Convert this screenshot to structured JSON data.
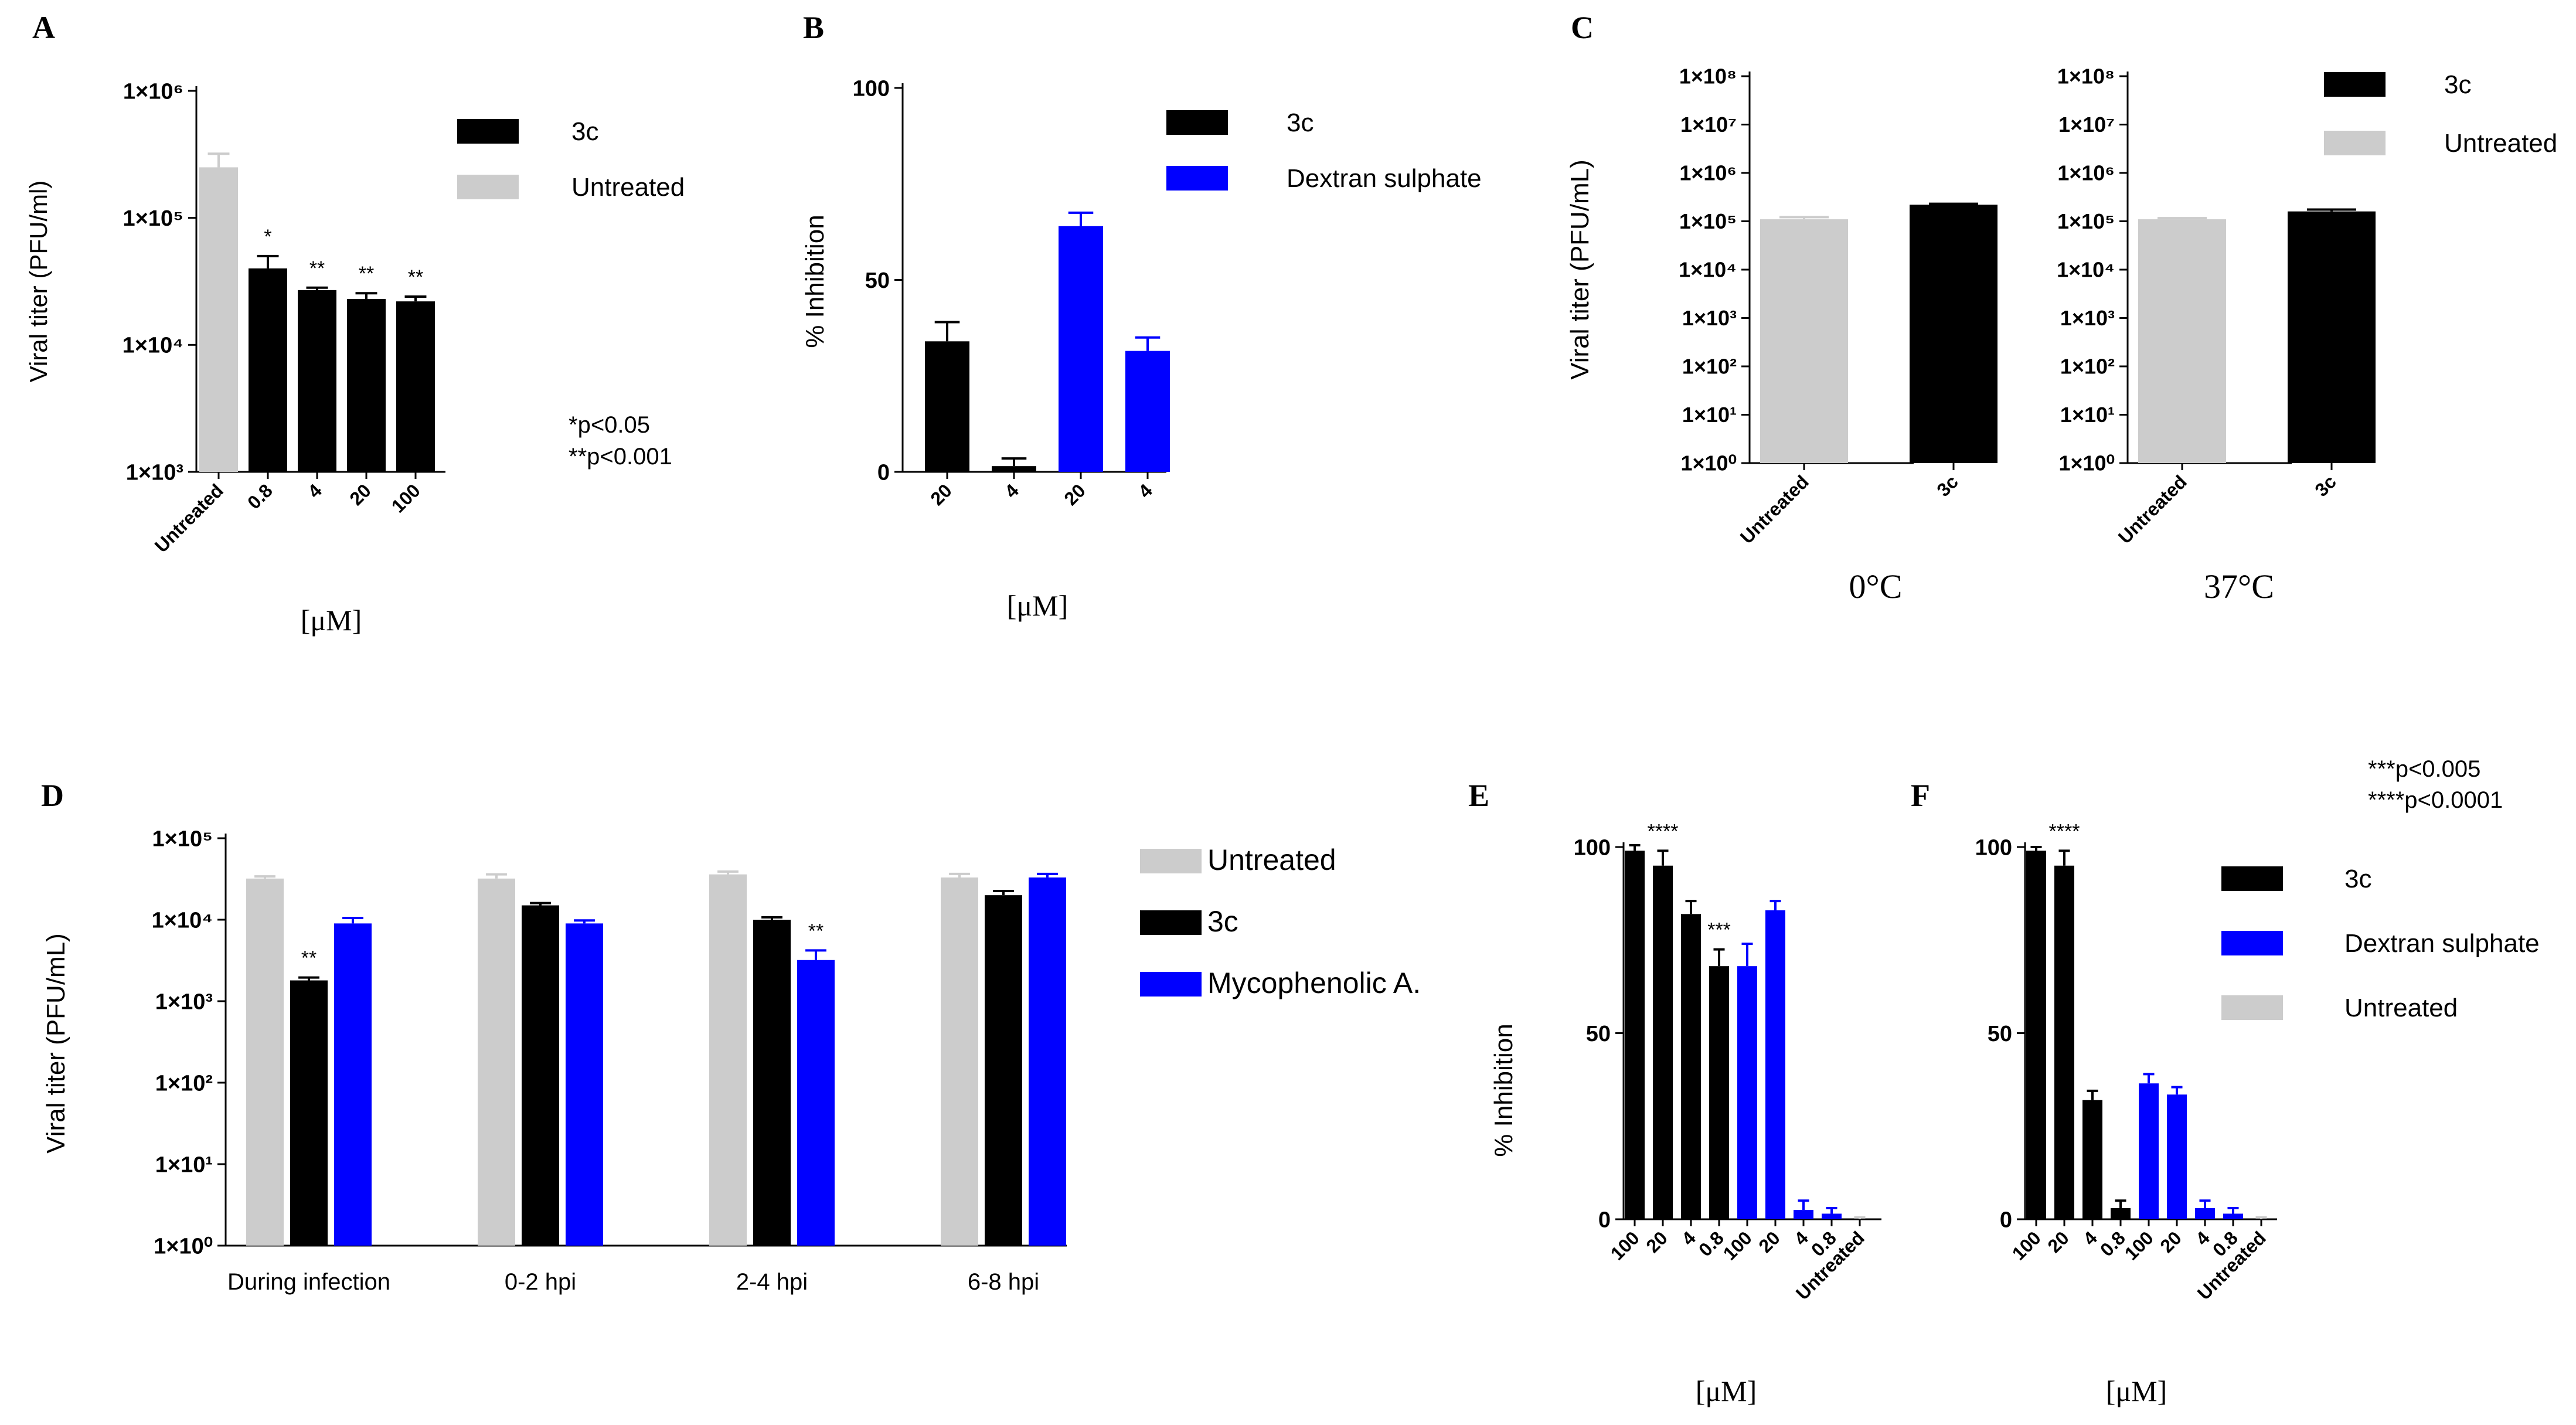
{
  "colors": {
    "black": "#000000",
    "gray": "#cccccc",
    "blue": "#0000ff"
  },
  "footnotes": {
    "a": [
      "*p<0.05",
      "**p<0.001"
    ],
    "ef": [
      "***p<0.005",
      "****p<0.0001"
    ]
  },
  "chart_data": [
    {
      "panel": "A",
      "type": "bar",
      "scale": "log",
      "ylabel": "Viral titer (PFU/ml)",
      "xlabel": "[μM]",
      "ylim": [
        1000,
        1000000
      ],
      "yticks": [
        {
          "value": 1000,
          "label": "1×10³"
        },
        {
          "value": 10000,
          "label": "1×10⁴"
        },
        {
          "value": 100000,
          "label": "1×10⁵"
        },
        {
          "value": 1000000,
          "label": "1×10⁶"
        }
      ],
      "categories": [
        "Untreated",
        "0.8",
        "4",
        "20",
        "100"
      ],
      "values": [
        250000,
        40000,
        27000,
        23000,
        22000
      ],
      "errors": [
        70000,
        10000,
        1200,
        2500,
        2000
      ],
      "colors": [
        "gray",
        "black",
        "black",
        "black",
        "black"
      ],
      "annotations": [
        "",
        "*",
        "**",
        "**",
        "**"
      ],
      "legend": [
        {
          "label": "3c",
          "color": "black"
        },
        {
          "label": "Untreated",
          "color": "gray"
        }
      ]
    },
    {
      "panel": "B",
      "type": "bar",
      "scale": "linear",
      "ylabel": "% Inhibition",
      "xlabel": "[μM]",
      "ylim": [
        0,
        100
      ],
      "yticks": [
        {
          "value": 0,
          "label": "0"
        },
        {
          "value": 50,
          "label": "50"
        },
        {
          "value": 100,
          "label": "100"
        }
      ],
      "categories": [
        "20",
        "4",
        "20",
        "4"
      ],
      "values": [
        34,
        1.5,
        64,
        31.5
      ],
      "errors": [
        5,
        2,
        3.5,
        3.5
      ],
      "colors": [
        "black",
        "black",
        "blue",
        "blue"
      ],
      "annotations": [
        "",
        "",
        "",
        ""
      ],
      "legend": [
        {
          "label": "3c",
          "color": "black"
        },
        {
          "label": "Dextran sulphate",
          "color": "blue"
        }
      ]
    },
    {
      "panel": "C",
      "type": "bar",
      "scale": "log",
      "ylabel": "Viral titer (PFU/mL)",
      "subcharts": [
        {
          "condition": "0°C",
          "categories": [
            "Untreated",
            "3c"
          ],
          "values": [
            110000,
            220000
          ],
          "errors": [
            12000,
            10000
          ],
          "colors": [
            "gray",
            "black"
          ]
        },
        {
          "condition": "37°C",
          "categories": [
            "Untreated",
            "3c"
          ],
          "values": [
            110000,
            160000
          ],
          "errors": [
            6000,
            15000
          ],
          "colors": [
            "gray",
            "black"
          ]
        }
      ],
      "ylim": [
        1,
        100000000
      ],
      "yticks": [
        {
          "value": 1,
          "label": "1×10⁰"
        },
        {
          "value": 10,
          "label": "1×10¹"
        },
        {
          "value": 100,
          "label": "1×10²"
        },
        {
          "value": 1000,
          "label": "1×10³"
        },
        {
          "value": 10000,
          "label": "1×10⁴"
        },
        {
          "value": 100000,
          "label": "1×10⁵"
        },
        {
          "value": 1000000,
          "label": "1×10⁶"
        },
        {
          "value": 10000000,
          "label": "1×10⁷"
        },
        {
          "value": 100000000,
          "label": "1×10⁸"
        }
      ],
      "legend": [
        {
          "label": "3c",
          "color": "black"
        },
        {
          "label": "Untreated",
          "color": "gray"
        }
      ]
    },
    {
      "panel": "D",
      "type": "bar",
      "scale": "log",
      "ylabel": "Viral titer (PFU/mL)",
      "ylim": [
        1,
        100000
      ],
      "yticks": [
        {
          "value": 1,
          "label": "1×10⁰"
        },
        {
          "value": 10,
          "label": "1×10¹"
        },
        {
          "value": 100,
          "label": "1×10²"
        },
        {
          "value": 1000,
          "label": "1×10³"
        },
        {
          "value": 10000,
          "label": "1×10⁴"
        },
        {
          "value": 100000,
          "label": "1×10⁵"
        }
      ],
      "categories": [
        "During infection",
        "0-2 hpi",
        "2-4 hpi",
        "6-8 hpi"
      ],
      "series": [
        {
          "name": "Untreated",
          "color": "gray",
          "values": [
            32000,
            32000,
            36000,
            33000
          ],
          "errors": [
            2000,
            4000,
            3000,
            3500
          ],
          "annotations": [
            "",
            "",
            "",
            ""
          ]
        },
        {
          "name": "3c",
          "color": "black",
          "values": [
            1800,
            15000,
            10000,
            20000
          ],
          "errors": [
            150,
            1000,
            700,
            2500
          ],
          "annotations": [
            "**",
            "",
            "",
            ""
          ]
        },
        {
          "name": "Mycophenolic A.",
          "color": "blue",
          "values": [
            9000,
            9000,
            3200,
            33000
          ],
          "errors": [
            1500,
            800,
            1000,
            3500
          ],
          "annotations": [
            "",
            "",
            "**",
            ""
          ]
        }
      ],
      "legend": [
        {
          "label": "Untreated",
          "color": "gray"
        },
        {
          "label": "3c",
          "color": "black"
        },
        {
          "label": "Mycophenolic A.",
          "color": "blue"
        }
      ]
    },
    {
      "panel": "E",
      "type": "bar",
      "scale": "linear",
      "ylabel": "% Inhibition",
      "xlabel": "[μM]",
      "ylim": [
        0,
        100
      ],
      "yticks": [
        {
          "value": 0,
          "label": "0"
        },
        {
          "value": 50,
          "label": "50"
        },
        {
          "value": 100,
          "label": "100"
        }
      ],
      "categories": [
        "100",
        "20",
        "4",
        "0.8",
        "100",
        "20",
        "4",
        "0.8",
        "Untreated"
      ],
      "values": [
        99,
        95,
        82,
        68,
        68,
        83,
        2.5,
        1.5,
        0
      ],
      "errors": [
        1.5,
        4,
        3.5,
        4.5,
        6,
        2.5,
        2.5,
        1.5,
        0.5
      ],
      "colors": [
        "black",
        "black",
        "black",
        "black",
        "blue",
        "blue",
        "blue",
        "blue",
        "gray"
      ],
      "annotations": [
        "",
        "****",
        "",
        "***",
        "",
        "",
        "",
        "",
        ""
      ]
    },
    {
      "panel": "F",
      "type": "bar",
      "scale": "linear",
      "ylabel": "",
      "xlabel": "[μM]",
      "ylim": [
        0,
        100
      ],
      "yticks": [
        {
          "value": 0,
          "label": "0"
        },
        {
          "value": 50,
          "label": "50"
        },
        {
          "value": 100,
          "label": "100"
        }
      ],
      "categories": [
        "100",
        "20",
        "4",
        "0.8",
        "100",
        "20",
        "4",
        "0.8",
        "Untreated"
      ],
      "values": [
        99,
        95,
        32,
        3,
        36.5,
        33.5,
        3,
        1.5,
        0
      ],
      "errors": [
        1,
        4,
        2.5,
        2,
        2.5,
        2,
        2,
        1.5,
        0.5
      ],
      "colors": [
        "black",
        "black",
        "black",
        "black",
        "blue",
        "blue",
        "blue",
        "blue",
        "gray"
      ],
      "annotations": [
        "",
        "****",
        "",
        "",
        "",
        "",
        "",
        "",
        ""
      ],
      "legend": [
        {
          "label": "3c",
          "color": "black"
        },
        {
          "label": "Dextran sulphate",
          "color": "blue"
        },
        {
          "label": "Untreated",
          "color": "gray"
        }
      ]
    }
  ]
}
